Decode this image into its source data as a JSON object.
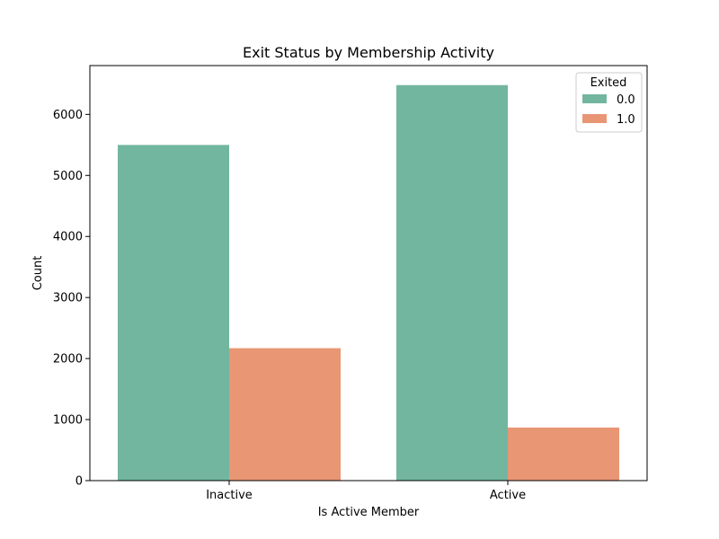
{
  "chart_data": {
    "type": "bar",
    "title": "Exit Status by Membership Activity",
    "xlabel": "Is Active Member",
    "ylabel": "Count",
    "categories": [
      "Inactive",
      "Active"
    ],
    "series": [
      {
        "name": "0.0",
        "values": [
          5500,
          6480
        ],
        "color": "#72b6a0"
      },
      {
        "name": "1.0",
        "values": [
          2170,
          870
        ],
        "color": "#e99675"
      }
    ],
    "ylim": [
      0,
      6800
    ],
    "yticks": [
      0,
      1000,
      2000,
      3000,
      4000,
      5000,
      6000
    ],
    "legend": {
      "title": "Exited",
      "placement": "top-right"
    },
    "grid": false
  }
}
